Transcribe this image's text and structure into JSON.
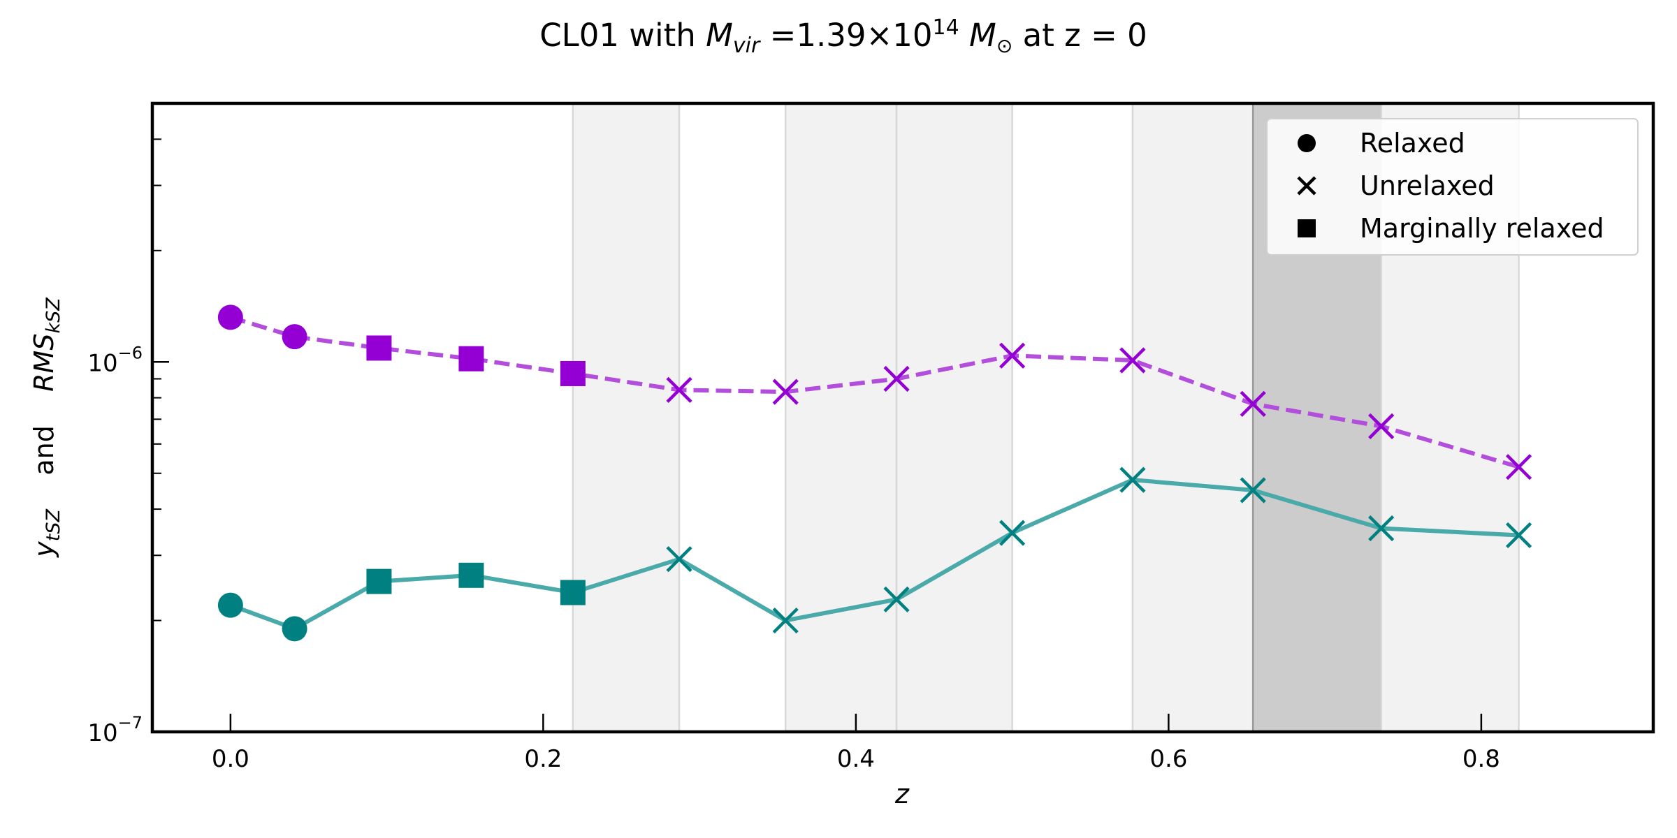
{
  "chart_data": {
    "type": "line",
    "title": {
      "prefix": "CL01 with ",
      "var_main": "M",
      "var_sub": "vir",
      "mid": " =1.39×10",
      "exp": "14",
      "sym_space": " ",
      "sym_main": "M",
      "sym_sub": "⊙",
      "suffix": " at z = 0"
    },
    "xlabel": "z",
    "ylabel": {
      "y_bar": "y",
      "y_sub": "tSZ",
      "and": "and",
      "rms": "RMS",
      "rms_sub": "kSZ"
    },
    "xlim": [
      -0.05,
      0.91
    ],
    "ylim": [
      1e-07,
      5e-06
    ],
    "yscale": "log",
    "x_ticks": [
      {
        "value": 0.0,
        "label": "0.0"
      },
      {
        "value": 0.2,
        "label": "0.2"
      },
      {
        "value": 0.4,
        "label": "0.4"
      },
      {
        "value": 0.6,
        "label": "0.6"
      },
      {
        "value": 0.8,
        "label": "0.8"
      }
    ],
    "y_major_ticks": [
      {
        "value": 1e-07,
        "base": "10",
        "exp": "−7"
      },
      {
        "value": 1e-06,
        "base": "10",
        "exp": "−6"
      }
    ],
    "y_minor_ticks": [
      2e-07,
      3e-07,
      4e-07,
      5e-07,
      6e-07,
      7e-07,
      8e-07,
      9e-07,
      2e-06,
      3e-06,
      4e-06
    ],
    "shaded_bands": [
      {
        "x0": 0.219,
        "x1": 0.287,
        "shade": "light"
      },
      {
        "x0": 0.355,
        "x1": 0.426,
        "shade": "light"
      },
      {
        "x0": 0.426,
        "x1": 0.5,
        "shade": "light"
      },
      {
        "x0": 0.577,
        "x1": 0.654,
        "shade": "light"
      },
      {
        "x0": 0.654,
        "x1": 0.736,
        "shade": "dark"
      },
      {
        "x0": 0.736,
        "x1": 0.824,
        "shade": "light"
      }
    ],
    "x": [
      0.0,
      0.041,
      0.095,
      0.154,
      0.219,
      0.287,
      0.355,
      0.426,
      0.5,
      0.577,
      0.654,
      0.736,
      0.824
    ],
    "states": [
      "relaxed",
      "relaxed",
      "marginal",
      "marginal",
      "marginal",
      "unrelaxed",
      "unrelaxed",
      "unrelaxed",
      "unrelaxed",
      "unrelaxed",
      "unrelaxed",
      "unrelaxed",
      "unrelaxed"
    ],
    "series": [
      {
        "name": "RMS kSZ",
        "color": "#9400d3",
        "line_color": "#b24ddc",
        "line_style": "dashed",
        "values": [
          1.32e-06,
          1.17e-06,
          1.09e-06,
          1.02e-06,
          9.3e-07,
          8.4e-07,
          8.3e-07,
          9e-07,
          1.04e-06,
          1.01e-06,
          7.7e-07,
          6.7e-07,
          5.2e-07
        ]
      },
      {
        "name": "y tSZ",
        "color": "#008080",
        "line_color": "#4aa9a9",
        "line_style": "solid",
        "values": [
          2.2e-07,
          1.9e-07,
          2.55e-07,
          2.65e-07,
          2.38e-07,
          2.93e-07,
          2e-07,
          2.28e-07,
          3.45e-07,
          4.8e-07,
          4.5e-07,
          3.55e-07,
          3.4e-07
        ]
      }
    ],
    "legend": {
      "position": "top-right",
      "entries": [
        {
          "marker": "circle",
          "label": "Relaxed"
        },
        {
          "marker": "cross",
          "label": "Unrelaxed"
        },
        {
          "marker": "square",
          "label": "Marginally relaxed"
        }
      ]
    },
    "colors": {
      "band_light": "#f2f2f2",
      "band_light_edge": "#d8d8d8",
      "band_dark": "#cccccc",
      "band_dark_edge": "#999999",
      "axes": "#000000"
    }
  }
}
